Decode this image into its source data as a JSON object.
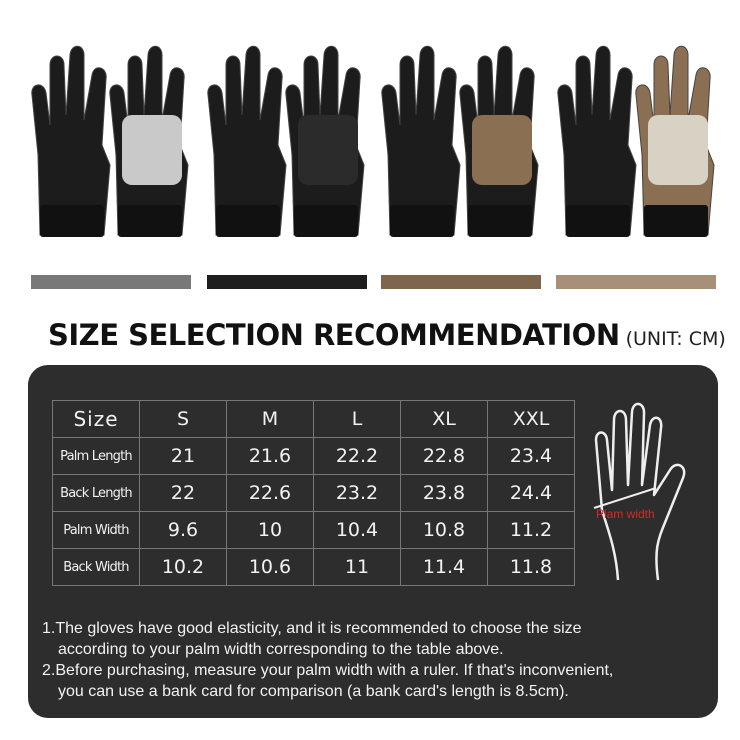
{
  "color_swatches": [
    "#787878",
    "#1e1e1e",
    "#7f654c",
    "#a89078"
  ],
  "glove_colors": [
    {
      "base": "#1c1c1c",
      "accent": "#c9c9c9"
    },
    {
      "base": "#1c1c1c",
      "accent": "#2b2b2b"
    },
    {
      "base": "#1c1c1c",
      "accent": "#8a6f52"
    },
    {
      "base": "#8a6f52",
      "accent": "#d8d2c4"
    }
  ],
  "title": "SIZE SELECTION RECOMMENDATION",
  "unit": "(UNIT:  CM)",
  "table": {
    "header": [
      "Size",
      "S",
      "M",
      "L",
      "XL",
      "XXL"
    ],
    "rows": [
      {
        "label": "Palm Length",
        "values": [
          "21",
          "21.6",
          "22.2",
          "22.8",
          "23.4"
        ]
      },
      {
        "label": "Back Length",
        "values": [
          "22",
          "22.6",
          "23.2",
          "23.8",
          "24.4"
        ]
      },
      {
        "label": "Palm Width",
        "values": [
          "9.6",
          "10",
          "10.4",
          "10.8",
          "11.2"
        ]
      },
      {
        "label": "Back Width",
        "values": [
          "10.2",
          "10.6",
          "11",
          "11.4",
          "11.8"
        ]
      }
    ]
  },
  "hand_label": "Plam width",
  "notes": [
    [
      "1.The gloves have good elasticity, and it is recommended to choose the size",
      "according to your palm width corresponding to the table above."
    ],
    [
      "2.Before purchasing, measure your palm width with a ruler. If that's inconvenient,",
      "you can use a bank card for comparison (a bank card's length is 8.5cm)."
    ]
  ]
}
